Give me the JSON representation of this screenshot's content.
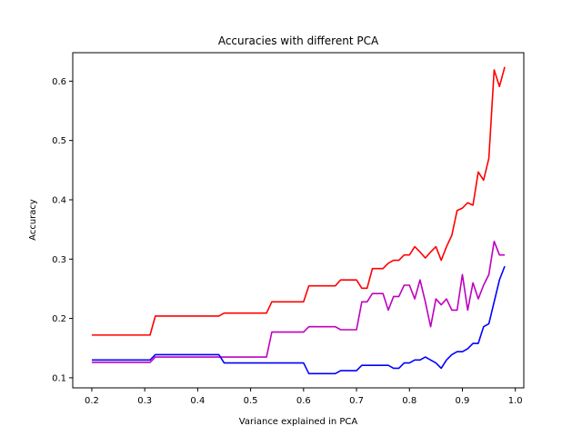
{
  "chart_data": {
    "type": "line",
    "title": "Accuracies with different PCA",
    "xlabel": "Variance explained in PCA",
    "ylabel": "Accuracy",
    "xlim": [
      0.164,
      1.016
    ],
    "ylim": [
      0.083,
      0.648
    ],
    "xticks": [
      0.2,
      0.3,
      0.4,
      0.5,
      0.6,
      0.7,
      0.8,
      0.9,
      1.0
    ],
    "xtick_labels": [
      "0.2",
      "0.3",
      "0.4",
      "0.5",
      "0.6",
      "0.7",
      "0.8",
      "0.9",
      "1.0"
    ],
    "yticks": [
      0.1,
      0.2,
      0.3,
      0.4,
      0.5,
      0.6
    ],
    "ytick_labels": [
      "0.1",
      "0.2",
      "0.3",
      "0.4",
      "0.5",
      "0.6"
    ],
    "grid": false,
    "legend": "none",
    "series": [
      {
        "color": "#ff0000",
        "points": [
          [
            0.2,
            0.172
          ],
          [
            0.31,
            0.172
          ],
          [
            0.32,
            0.204
          ],
          [
            0.44,
            0.204
          ],
          [
            0.45,
            0.209
          ],
          [
            0.53,
            0.209
          ],
          [
            0.54,
            0.228
          ],
          [
            0.6,
            0.228
          ],
          [
            0.61,
            0.255
          ],
          [
            0.66,
            0.255
          ],
          [
            0.67,
            0.265
          ],
          [
            0.7,
            0.265
          ],
          [
            0.71,
            0.251
          ],
          [
            0.72,
            0.251
          ],
          [
            0.73,
            0.284
          ],
          [
            0.75,
            0.284
          ],
          [
            0.76,
            0.293
          ],
          [
            0.77,
            0.298
          ],
          [
            0.78,
            0.298
          ],
          [
            0.79,
            0.307
          ],
          [
            0.8,
            0.307
          ],
          [
            0.81,
            0.321
          ],
          [
            0.82,
            0.312
          ],
          [
            0.83,
            0.302
          ],
          [
            0.84,
            0.312
          ],
          [
            0.85,
            0.321
          ],
          [
            0.86,
            0.298
          ],
          [
            0.87,
            0.321
          ],
          [
            0.88,
            0.34
          ],
          [
            0.89,
            0.382
          ],
          [
            0.9,
            0.386
          ],
          [
            0.91,
            0.395
          ],
          [
            0.92,
            0.391
          ],
          [
            0.93,
            0.447
          ],
          [
            0.94,
            0.433
          ],
          [
            0.95,
            0.47
          ],
          [
            0.96,
            0.619
          ],
          [
            0.97,
            0.591
          ],
          [
            0.98,
            0.624
          ]
        ]
      },
      {
        "color": "#bf00bf",
        "points": [
          [
            0.2,
            0.126
          ],
          [
            0.31,
            0.126
          ],
          [
            0.32,
            0.135
          ],
          [
            0.53,
            0.135
          ],
          [
            0.54,
            0.177
          ],
          [
            0.6,
            0.177
          ],
          [
            0.61,
            0.186
          ],
          [
            0.66,
            0.186
          ],
          [
            0.67,
            0.181
          ],
          [
            0.7,
            0.181
          ],
          [
            0.71,
            0.228
          ],
          [
            0.72,
            0.228
          ],
          [
            0.73,
            0.242
          ],
          [
            0.75,
            0.242
          ],
          [
            0.76,
            0.214
          ],
          [
            0.77,
            0.237
          ],
          [
            0.78,
            0.237
          ],
          [
            0.79,
            0.256
          ],
          [
            0.8,
            0.256
          ],
          [
            0.81,
            0.233
          ],
          [
            0.82,
            0.265
          ],
          [
            0.83,
            0.228
          ],
          [
            0.84,
            0.186
          ],
          [
            0.85,
            0.233
          ],
          [
            0.86,
            0.223
          ],
          [
            0.87,
            0.233
          ],
          [
            0.88,
            0.214
          ],
          [
            0.89,
            0.214
          ],
          [
            0.9,
            0.274
          ],
          [
            0.91,
            0.214
          ],
          [
            0.92,
            0.26
          ],
          [
            0.93,
            0.233
          ],
          [
            0.94,
            0.256
          ],
          [
            0.95,
            0.274
          ],
          [
            0.96,
            0.33
          ],
          [
            0.97,
            0.307
          ],
          [
            0.98,
            0.307
          ]
        ]
      },
      {
        "color": "#0000ff",
        "points": [
          [
            0.2,
            0.13
          ],
          [
            0.31,
            0.13
          ],
          [
            0.32,
            0.139
          ],
          [
            0.44,
            0.139
          ],
          [
            0.45,
            0.125
          ],
          [
            0.6,
            0.125
          ],
          [
            0.61,
            0.107
          ],
          [
            0.66,
            0.107
          ],
          [
            0.67,
            0.112
          ],
          [
            0.7,
            0.112
          ],
          [
            0.71,
            0.121
          ],
          [
            0.76,
            0.121
          ],
          [
            0.77,
            0.116
          ],
          [
            0.78,
            0.116
          ],
          [
            0.79,
            0.125
          ],
          [
            0.8,
            0.125
          ],
          [
            0.81,
            0.13
          ],
          [
            0.82,
            0.13
          ],
          [
            0.83,
            0.135
          ],
          [
            0.84,
            0.13
          ],
          [
            0.85,
            0.125
          ],
          [
            0.86,
            0.116
          ],
          [
            0.87,
            0.13
          ],
          [
            0.88,
            0.139
          ],
          [
            0.89,
            0.144
          ],
          [
            0.9,
            0.144
          ],
          [
            0.91,
            0.149
          ],
          [
            0.92,
            0.158
          ],
          [
            0.93,
            0.158
          ],
          [
            0.94,
            0.186
          ],
          [
            0.95,
            0.191
          ],
          [
            0.96,
            0.228
          ],
          [
            0.97,
            0.265
          ],
          [
            0.98,
            0.288
          ]
        ]
      }
    ]
  }
}
